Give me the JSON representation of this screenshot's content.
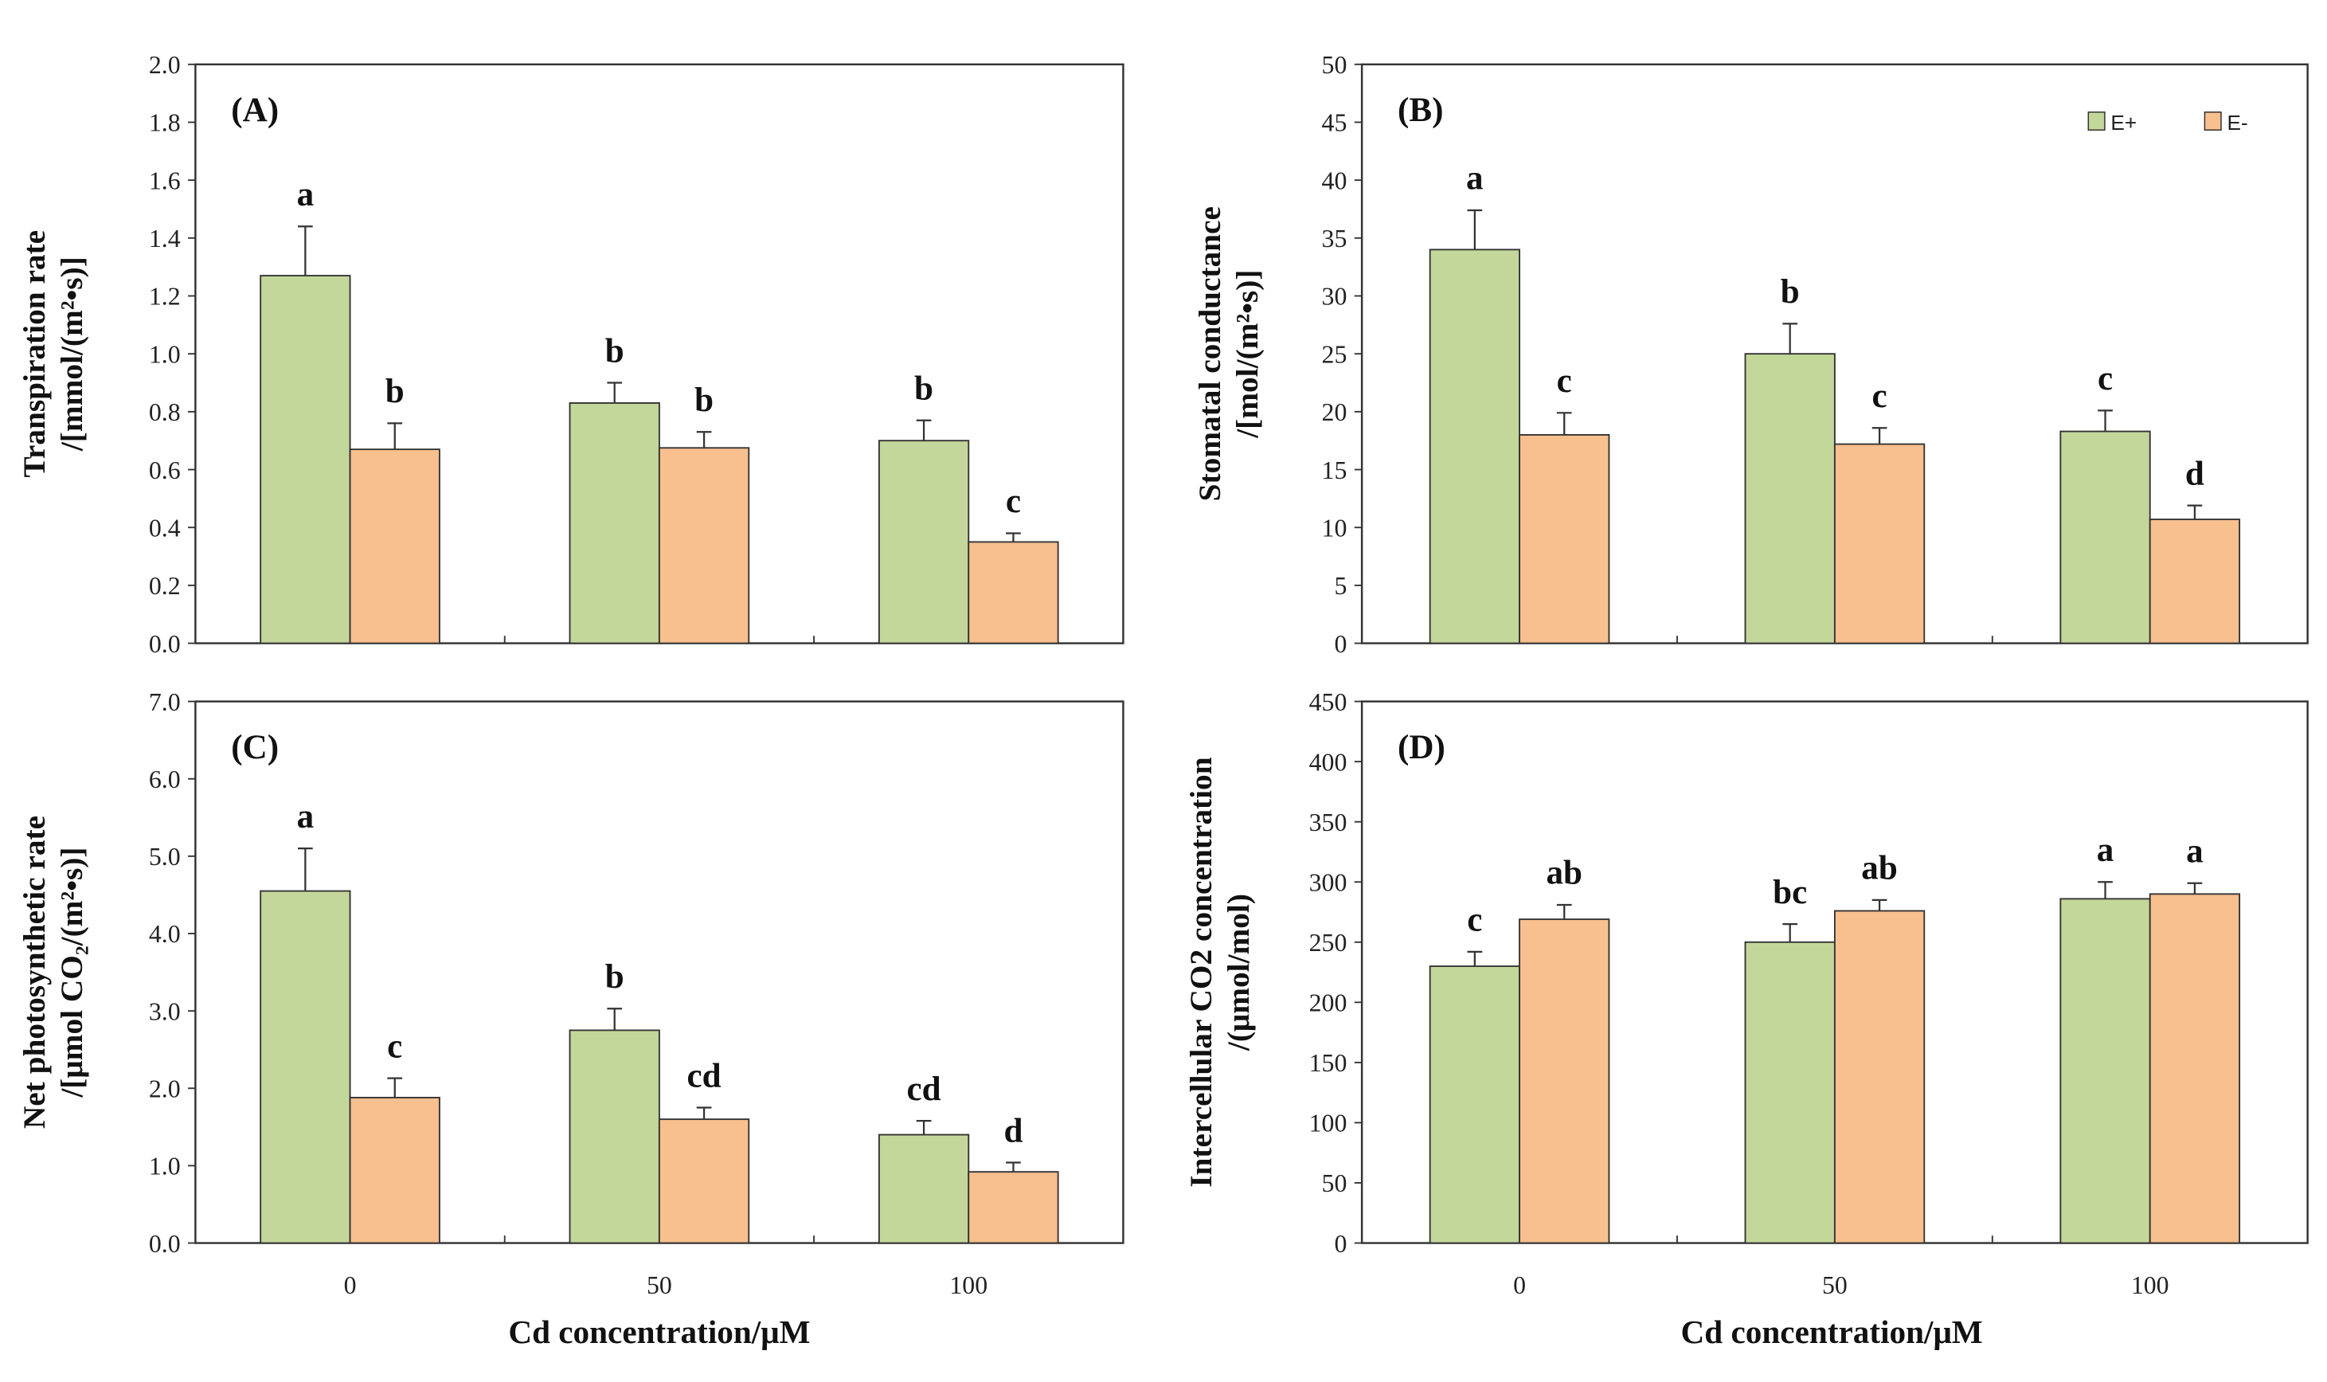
{
  "colors": {
    "eplus": "#c4d79b",
    "eminus": "#f8bf8f",
    "axis": "#333333"
  },
  "legend": {
    "items": [
      {
        "label": "E+"
      },
      {
        "label": "E-"
      }
    ]
  },
  "xlabel": "Cd concentration/μM",
  "chart_data": [
    {
      "type": "bar",
      "panel": "(A)",
      "ylabel_lines": [
        "Transpiration rate",
        "/[mmol/(m²•s)]"
      ],
      "categories": [
        "0",
        "50",
        "100"
      ],
      "ylim": [
        0,
        2.0
      ],
      "ticks": [
        "0.0",
        "0.2",
        "0.4",
        "0.6",
        "0.8",
        "1.0",
        "1.2",
        "1.4",
        "1.6",
        "1.8",
        "2.0"
      ],
      "series": [
        {
          "name": "E+",
          "values": [
            1.27,
            0.83,
            0.7
          ],
          "errors": [
            0.17,
            0.07,
            0.07
          ],
          "letters": [
            "a",
            "b",
            "b"
          ]
        },
        {
          "name": "E-",
          "values": [
            0.67,
            0.675,
            0.35
          ],
          "errors": [
            0.09,
            0.055,
            0.03
          ],
          "letters": [
            "b",
            "b",
            "c"
          ]
        }
      ]
    },
    {
      "type": "bar",
      "panel": "(B)",
      "ylabel_lines": [
        "Stomatal conductance",
        "/[mol/(m²•s)]"
      ],
      "categories": [
        "0",
        "50",
        "100"
      ],
      "ylim": [
        0,
        50
      ],
      "ticks": [
        "0",
        "5",
        "10",
        "15",
        "20",
        "25",
        "30",
        "35",
        "40",
        "45",
        "50"
      ],
      "series": [
        {
          "name": "E+",
          "values": [
            34,
            25,
            18.3
          ],
          "errors": [
            3.4,
            2.6,
            1.8
          ],
          "letters": [
            "a",
            "b",
            "c"
          ]
        },
        {
          "name": "E-",
          "values": [
            18,
            17.2,
            10.7
          ],
          "errors": [
            1.9,
            1.4,
            1.2
          ],
          "letters": [
            "c",
            "c",
            "d"
          ]
        }
      ]
    },
    {
      "type": "bar",
      "panel": "(C)",
      "ylabel_lines": [
        "Net photosynthetic rate",
        "/[μmol CO₂/(m²•s)]"
      ],
      "categories": [
        "0",
        "50",
        "100"
      ],
      "ylim": [
        0,
        7.0
      ],
      "ticks": [
        "0.0",
        "1.0",
        "2.0",
        "3.0",
        "4.0",
        "5.0",
        "6.0",
        "7.0"
      ],
      "series": [
        {
          "name": "E+",
          "values": [
            4.55,
            2.75,
            1.4
          ],
          "errors": [
            0.55,
            0.28,
            0.18
          ],
          "letters": [
            "a",
            "b",
            "cd"
          ]
        },
        {
          "name": "E-",
          "values": [
            1.88,
            1.6,
            0.92
          ],
          "errors": [
            0.25,
            0.15,
            0.12
          ],
          "letters": [
            "c",
            "cd",
            "d"
          ]
        }
      ]
    },
    {
      "type": "bar",
      "panel": "(D)",
      "ylabel_lines": [
        "Intercellular CO2 concentration",
        "/(μmol/mol)"
      ],
      "categories": [
        "0",
        "50",
        "100"
      ],
      "ylim": [
        0,
        450
      ],
      "ticks": [
        "0",
        "50",
        "100",
        "150",
        "200",
        "250",
        "300",
        "350",
        "400",
        "450"
      ],
      "series": [
        {
          "name": "E+",
          "values": [
            230,
            250,
            286
          ],
          "errors": [
            12,
            15,
            14
          ],
          "letters": [
            "c",
            "bc",
            "a"
          ]
        },
        {
          "name": "E-",
          "values": [
            269,
            276,
            290
          ],
          "errors": [
            12,
            9,
            9
          ],
          "letters": [
            "ab",
            "ab",
            "a"
          ]
        }
      ]
    }
  ]
}
